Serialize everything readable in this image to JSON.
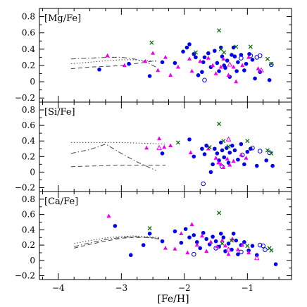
{
  "chart_data": {
    "type": "scatter",
    "xlabel": "[Fe/H]",
    "xlim": [
      -4.3,
      -0.3
    ],
    "xticks": [
      -4,
      -3,
      -2,
      -1
    ],
    "xtick_labels": [
      "−4",
      "−3",
      "−2",
      "−1"
    ],
    "ylim": [
      -0.25,
      0.9
    ],
    "yticks": [
      -0.2,
      0,
      0.2,
      0.4,
      0.6,
      0.8
    ],
    "ytick_labels": [
      "−0.2",
      "0",
      "0.2",
      "0.4",
      "0.6",
      "0.8"
    ],
    "colors": {
      "filled_circle": "#0000ee",
      "open_circle": "#0000ee",
      "triangle": "#ee00ee",
      "cross": "#006400"
    },
    "panels": [
      {
        "label": "[Mg/Fe]",
        "points": {
          "filled_circle": [
            [
              -3.35,
              0.15
            ],
            [
              -2.88,
              0.22
            ],
            [
              -2.55,
              0.07
            ],
            [
              -2.35,
              0.24
            ],
            [
              -2.15,
              0.23
            ],
            [
              -2.02,
              0.37
            ],
            [
              -1.96,
              0.42
            ],
            [
              -1.92,
              0.46
            ],
            [
              -1.85,
              0.34
            ],
            [
              -1.82,
              0.3
            ],
            [
              -1.78,
              0.08
            ],
            [
              -1.72,
              0.12
            ],
            [
              -1.7,
              0.24
            ],
            [
              -1.68,
              0.3
            ],
            [
              -1.62,
              0.35
            ],
            [
              -1.58,
              0.18
            ],
            [
              -1.52,
              0.38
            ],
            [
              -1.48,
              0.23
            ],
            [
              -1.45,
              0.13
            ],
            [
              -1.42,
              0.42
            ],
            [
              -1.4,
              0.31
            ],
            [
              -1.37,
              0.2
            ],
            [
              -1.35,
              0.17
            ],
            [
              -1.32,
              0.26
            ],
            [
              -1.28,
              0.06
            ],
            [
              -1.25,
              0.33
            ],
            [
              -1.22,
              0.42
            ],
            [
              -1.2,
              0.31
            ],
            [
              -1.17,
              0.13
            ],
            [
              -1.15,
              0.24
            ],
            [
              -1.1,
              0.33
            ],
            [
              -1.05,
              0.14
            ],
            [
              -1.02,
              0.22
            ],
            [
              -0.97,
              0.34
            ],
            [
              -0.92,
              0.27
            ],
            [
              -0.88,
              0.04
            ],
            [
              -0.8,
              0.12
            ],
            [
              -0.65,
              0.02
            ]
          ],
          "open_circle": [
            [
              -1.68,
              0.02
            ],
            [
              -1.1,
              0.29
            ],
            [
              -0.95,
              0.32
            ],
            [
              -0.85,
              0.3
            ],
            [
              -0.8,
              0.32
            ],
            [
              -0.62,
              0.21
            ]
          ],
          "triangle": [
            [
              -3.22,
              0.32
            ],
            [
              -2.95,
              0.2
            ],
            [
              -2.62,
              0.25
            ],
            [
              -2.5,
              0.35
            ],
            [
              -2.42,
              0.14
            ],
            [
              -2.3,
              0.3
            ],
            [
              -2.22,
              0.08
            ],
            [
              -2.1,
              0.18
            ],
            [
              -1.92,
              0.28
            ],
            [
              -1.88,
              0.13
            ],
            [
              -1.75,
              0.25
            ],
            [
              -1.62,
              0.29
            ],
            [
              -1.55,
              0.2
            ],
            [
              -1.5,
              0.1
            ],
            [
              -1.42,
              0.18
            ],
            [
              -1.38,
              0.28
            ],
            [
              -1.3,
              0.08
            ],
            [
              -1.22,
              0.18
            ],
            [
              -1.18,
              0.0
            ],
            [
              -1.08,
              0.2
            ],
            [
              -0.98,
              0.3
            ],
            [
              -0.83,
              0.16
            ]
          ],
          "open_triangle": [
            [
              -1.28,
              0.21
            ],
            [
              -0.78,
              0.14
            ]
          ],
          "cross": [
            [
              -2.52,
              0.48
            ],
            [
              -1.82,
              0.36
            ],
            [
              -1.45,
              0.63
            ],
            [
              -1.42,
              0.4
            ],
            [
              -1.37,
              0.36
            ],
            [
              -1.18,
              0.43
            ],
            [
              -0.95,
              0.43
            ],
            [
              -0.68,
              0.28
            ],
            [
              -0.62,
              0.22
            ]
          ]
        },
        "curves": [
          {
            "style": "dash-dot",
            "x": [
              -3.8,
              -3.5,
              -3.2,
              -3.0,
              -2.8,
              -2.6,
              -2.45
            ],
            "y": [
              0.28,
              0.29,
              0.3,
              0.3,
              0.28,
              0.24,
              0.18
            ]
          },
          {
            "style": "dotted",
            "x": [
              -3.8,
              -3.5,
              -3.2,
              -3.0,
              -2.8,
              -2.6,
              -2.45
            ],
            "y": [
              0.22,
              0.24,
              0.26,
              0.27,
              0.27,
              0.26,
              0.25
            ]
          },
          {
            "style": "dashed",
            "x": [
              -3.8,
              -3.5,
              -3.2,
              -3.0,
              -2.8,
              -2.6,
              -2.45
            ],
            "y": [
              0.16,
              0.18,
              0.19,
              0.2,
              0.22,
              0.24,
              0.26
            ]
          }
        ]
      },
      {
        "label": "[Si/Fe]",
        "points": {
          "filled_circle": [
            [
              -2.35,
              0.24
            ],
            [
              -1.92,
              0.42
            ],
            [
              -1.85,
              0.2
            ],
            [
              -1.72,
              0.3
            ],
            [
              -1.68,
              0.23
            ],
            [
              -1.65,
              0.34
            ],
            [
              -1.58,
              0.0
            ],
            [
              -1.55,
              0.1
            ],
            [
              -1.52,
              0.3
            ],
            [
              -1.48,
              0.24
            ],
            [
              -1.45,
              0.15
            ],
            [
              -1.42,
              0.38
            ],
            [
              -1.4,
              0.28
            ],
            [
              -1.37,
              0.19
            ],
            [
              -1.33,
              0.31
            ],
            [
              -1.3,
              0.12
            ],
            [
              -1.28,
              0.25
            ],
            [
              -1.24,
              0.34
            ],
            [
              -1.2,
              0.28
            ],
            [
              -1.15,
              0.16
            ],
            [
              -1.1,
              0.36
            ],
            [
              -1.05,
              0.1
            ],
            [
              -1.0,
              0.26
            ],
            [
              -0.95,
              0.3
            ],
            [
              -0.85,
              0.08
            ],
            [
              -0.7,
              0.15
            ],
            [
              -0.6,
              0.08
            ]
          ],
          "open_circle": [
            [
              -1.7,
              -0.15
            ],
            [
              -1.4,
              0.07
            ],
            [
              -1.08,
              0.22
            ],
            [
              -0.92,
              0.31
            ],
            [
              -0.8,
              0.27
            ],
            [
              -0.65,
              0.25
            ]
          ],
          "triangle": [
            [
              -2.6,
              0.31
            ],
            [
              -2.4,
              0.43
            ],
            [
              -2.32,
              0.32
            ],
            [
              -2.22,
              0.34
            ],
            [
              -1.9,
              0.25
            ],
            [
              -1.62,
              0.3
            ],
            [
              -1.5,
              0.18
            ],
            [
              -1.46,
              0.12
            ],
            [
              -1.42,
              0.1
            ],
            [
              -1.38,
              0.06
            ],
            [
              -1.32,
              0.17
            ],
            [
              -1.28,
              0.09
            ],
            [
              -1.22,
              0.14
            ],
            [
              -1.1,
              0.22
            ],
            [
              -1.02,
              0.18
            ]
          ],
          "open_triangle": [
            [
              -2.4,
              0.31
            ],
            [
              -1.3,
              0.42
            ]
          ],
          "cross": [
            [
              -2.1,
              0.38
            ],
            [
              -1.6,
              0.32
            ],
            [
              -1.45,
              0.62
            ],
            [
              -1.38,
              0.4
            ],
            [
              -1.3,
              0.33
            ],
            [
              -1.0,
              0.4
            ],
            [
              -0.68,
              0.28
            ],
            [
              -0.62,
              0.24
            ]
          ]
        },
        "curves": [
          {
            "style": "dotted",
            "x": [
              -3.8,
              -3.4,
              -3.0,
              -2.6,
              -2.3
            ],
            "y": [
              0.38,
              0.38,
              0.38,
              0.37,
              0.36
            ]
          },
          {
            "style": "dash-dot",
            "x": [
              -3.8,
              -3.5,
              -3.25,
              -3.0,
              -2.75,
              -2.45
            ],
            "y": [
              0.24,
              0.29,
              0.36,
              0.24,
              0.13,
              0.02
            ]
          },
          {
            "style": "dashed",
            "x": [
              -3.8,
              -3.4,
              -3.0,
              -2.6,
              -2.3
            ],
            "y": [
              0.07,
              0.08,
              0.09,
              0.09,
              0.09
            ]
          }
        ]
      },
      {
        "label": "[Ca/Fe]",
        "points": {
          "filled_circle": [
            [
              -3.1,
              0.45
            ],
            [
              -2.85,
              0.07
            ],
            [
              -2.65,
              0.2
            ],
            [
              -2.55,
              0.35
            ],
            [
              -2.35,
              0.25
            ],
            [
              -2.15,
              0.38
            ],
            [
              -2.05,
              0.23
            ],
            [
              -1.98,
              0.41
            ],
            [
              -1.92,
              0.3
            ],
            [
              -1.85,
              0.33
            ],
            [
              -1.8,
              0.24
            ],
            [
              -1.75,
              0.16
            ],
            [
              -1.7,
              0.36
            ],
            [
              -1.65,
              0.28
            ],
            [
              -1.6,
              0.21
            ],
            [
              -1.55,
              0.31
            ],
            [
              -1.5,
              0.25
            ],
            [
              -1.45,
              0.18
            ],
            [
              -1.42,
              0.35
            ],
            [
              -1.38,
              0.3
            ],
            [
              -1.35,
              0.12
            ],
            [
              -1.3,
              0.22
            ],
            [
              -1.25,
              0.14
            ],
            [
              -1.22,
              0.35
            ],
            [
              -1.18,
              0.26
            ],
            [
              -1.15,
              0.08
            ],
            [
              -1.1,
              0.2
            ],
            [
              -1.05,
              0.24
            ],
            [
              -0.98,
              0.13
            ],
            [
              -0.92,
              0.19
            ],
            [
              -0.85,
              0.07
            ],
            [
              -0.55,
              -0.05
            ]
          ],
          "open_circle": [
            [
              -1.85,
              0.08
            ],
            [
              -1.5,
              0.16
            ],
            [
              -1.1,
              0.11
            ],
            [
              -0.8,
              0.2
            ],
            [
              -0.75,
              0.19
            ],
            [
              -0.72,
              0.14
            ]
          ],
          "triangle": [
            [
              -3.2,
              0.58
            ],
            [
              -2.3,
              0.16
            ],
            [
              -2.15,
              0.15
            ],
            [
              -2.05,
              0.35
            ],
            [
              -1.95,
              0.1
            ],
            [
              -1.88,
              0.47
            ],
            [
              -1.8,
              0.2
            ],
            [
              -1.72,
              0.32
            ],
            [
              -1.65,
              0.12
            ],
            [
              -1.58,
              0.24
            ],
            [
              -1.48,
              0.18
            ],
            [
              -1.4,
              0.26
            ],
            [
              -1.35,
              0.19
            ],
            [
              -1.3,
              0.08
            ],
            [
              -1.24,
              0.28
            ],
            [
              -1.15,
              0.14
            ],
            [
              -1.08,
              0.2
            ],
            [
              -0.98,
              0.1
            ]
          ],
          "open_triangle": [
            [
              -1.3,
              0.14
            ],
            [
              -0.85,
              0.03
            ]
          ],
          "cross": [
            [
              -2.55,
              0.42
            ],
            [
              -1.45,
              0.62
            ],
            [
              -1.4,
              0.22
            ],
            [
              -1.25,
              0.26
            ],
            [
              -1.0,
              0.19
            ],
            [
              -0.65,
              0.16
            ],
            [
              -0.62,
              0.13
            ]
          ]
        },
        "curves": [
          {
            "style": "dotted",
            "x": [
              -3.75,
              -3.5,
              -3.2,
              -3.0,
              -2.8,
              -2.6,
              -2.4
            ],
            "y": [
              0.22,
              0.26,
              0.3,
              0.31,
              0.32,
              0.31,
              0.3
            ]
          },
          {
            "style": "dash-dot",
            "x": [
              -3.75,
              -3.5,
              -3.2,
              -3.0,
              -2.8,
              -2.6,
              -2.4
            ],
            "y": [
              0.18,
              0.23,
              0.28,
              0.3,
              0.31,
              0.3,
              0.28
            ]
          },
          {
            "style": "dashed",
            "x": [
              -3.75,
              -3.5,
              -3.2,
              -3.0,
              -2.8,
              -2.6,
              -2.4
            ],
            "y": [
              0.16,
              0.21,
              0.26,
              0.29,
              0.3,
              0.3,
              0.29
            ]
          }
        ]
      }
    ]
  }
}
